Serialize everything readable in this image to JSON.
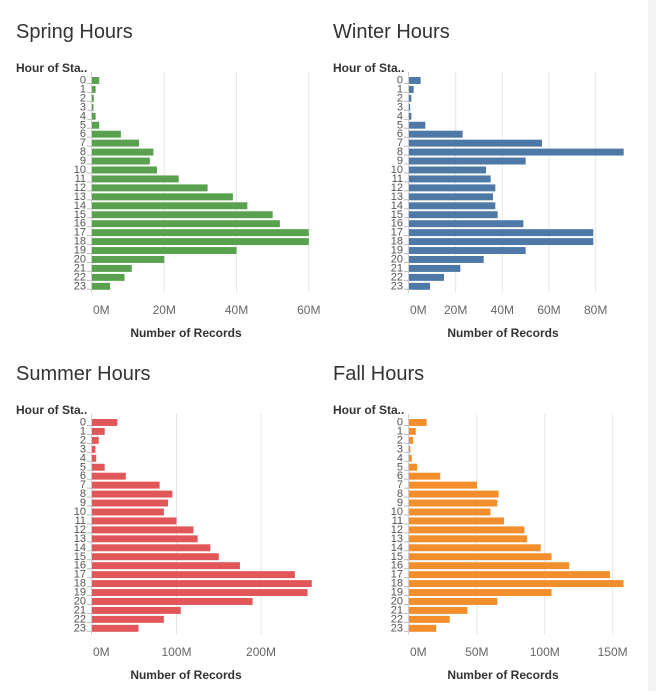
{
  "chart_data": [
    {
      "type": "bar",
      "orientation": "horizontal",
      "title": "Spring Hours",
      "row_header": "Hour of Sta..",
      "xlabel": "Number of Records",
      "color": "#59a14f",
      "categories": [
        "0",
        "1",
        "2",
        "3",
        "4",
        "5",
        "6",
        "7",
        "8",
        "9",
        "10",
        "11",
        "12",
        "13",
        "14",
        "15",
        "16",
        "17",
        "18",
        "19",
        "20",
        "21",
        "22",
        "23"
      ],
      "values": [
        2,
        1,
        0.5,
        0.4,
        1,
        2,
        8,
        13,
        17,
        16,
        18,
        24,
        32,
        39,
        43,
        50,
        52,
        60,
        60,
        40,
        20,
        11,
        9,
        5
      ],
      "xticks": [
        "0M",
        "20M",
        "40M",
        "60M"
      ],
      "xlim": [
        0,
        62
      ]
    },
    {
      "type": "bar",
      "orientation": "horizontal",
      "title": "Winter Hours",
      "row_header": "Hour of Sta..",
      "xlabel": "Number of Records",
      "color": "#4e79a7",
      "categories": [
        "0",
        "1",
        "2",
        "3",
        "4",
        "5",
        "6",
        "7",
        "8",
        "9",
        "10",
        "11",
        "12",
        "13",
        "14",
        "15",
        "16",
        "17",
        "18",
        "19",
        "20",
        "21",
        "22",
        "23"
      ],
      "values": [
        5,
        2,
        1,
        0.5,
        1,
        7,
        23,
        57,
        92,
        50,
        33,
        35,
        37,
        36,
        37,
        38,
        49,
        79,
        79,
        50,
        32,
        22,
        15,
        9
      ],
      "xticks": [
        "0M",
        "20M",
        "40M",
        "60M",
        "80M"
      ],
      "xlim": [
        0,
        96
      ]
    },
    {
      "type": "bar",
      "orientation": "horizontal",
      "title": "Summer Hours",
      "row_header": "Hour of Sta..",
      "xlabel": "Number of Records",
      "color": "#e15759",
      "categories": [
        "0",
        "1",
        "2",
        "3",
        "4",
        "5",
        "6",
        "7",
        "8",
        "9",
        "10",
        "11",
        "12",
        "13",
        "14",
        "15",
        "16",
        "17",
        "18",
        "19",
        "20",
        "21",
        "22",
        "23"
      ],
      "values": [
        30,
        15,
        8,
        4,
        5,
        15,
        40,
        80,
        95,
        90,
        85,
        100,
        120,
        125,
        140,
        150,
        175,
        240,
        260,
        255,
        190,
        105,
        85,
        55
      ],
      "xticks": [
        "0M",
        "100M",
        "200M"
      ],
      "xlim": [
        0,
        265
      ]
    },
    {
      "type": "bar",
      "orientation": "horizontal",
      "title": "Fall Hours",
      "row_header": "Hour of Sta..",
      "xlabel": "Number of Records",
      "color": "#f28e2b",
      "categories": [
        "0",
        "1",
        "2",
        "3",
        "4",
        "5",
        "6",
        "7",
        "8",
        "9",
        "10",
        "11",
        "12",
        "13",
        "14",
        "15",
        "16",
        "17",
        "18",
        "19",
        "20",
        "21",
        "22",
        "23"
      ],
      "values": [
        13,
        5,
        3,
        1,
        2,
        6,
        23,
        50,
        66,
        65,
        60,
        70,
        85,
        87,
        97,
        105,
        118,
        148,
        158,
        105,
        65,
        43,
        30,
        20
      ],
      "xticks": [
        "0M",
        "50M",
        "100M",
        "150M"
      ],
      "xlim": [
        0,
        165
      ]
    }
  ]
}
